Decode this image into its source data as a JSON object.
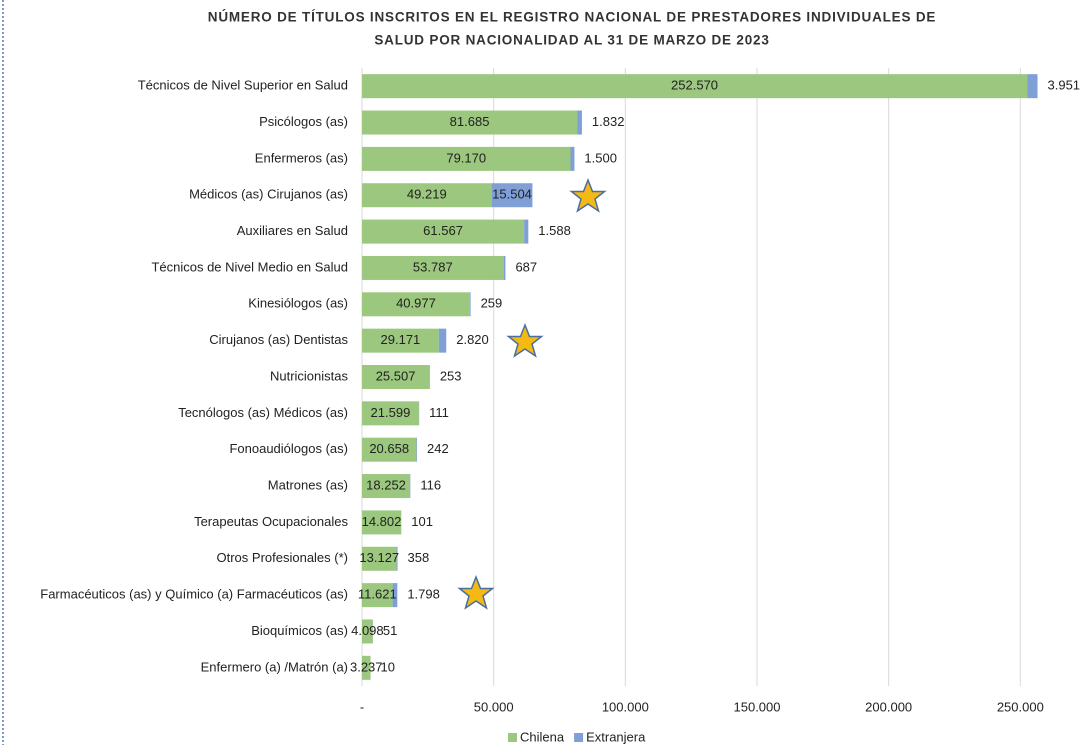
{
  "chart_data": {
    "type": "bar",
    "orientation": "horizontal",
    "stacked": true,
    "title": "NÚMERO DE TÍTULOS INSCRITOS EN EL REGISTRO NACIONAL DE PRESTADORES INDIVIDUALES DE",
    "subtitle": "SALUD POR NACIONALIDAD AL 31 DE MARZO DE 2023",
    "categories": [
      "Técnicos de Nivel Superior en Salud",
      "Psicólogos (as)",
      "Enfermeros (as)",
      "Médicos (as) Cirujanos (as)",
      "Auxiliares en Salud",
      "Técnicos de Nivel Medio en Salud",
      "Kinesiólogos (as)",
      "Cirujanos (as) Dentistas",
      "Nutricionistas",
      "Tecnólogos (as) Médicos (as)",
      "Fonoaudiólogos (as)",
      "Matrones (as)",
      "Terapeutas Ocupacionales",
      "Otros Profesionales (*)",
      "Farmacéuticos (as) y Químico (a) Farmacéuticos (as)",
      "Bioquímicos (as)",
      "Enfermero (a) /Matrón (a)"
    ],
    "series": [
      {
        "name": "Chilena",
        "color": "#9bc77e",
        "values": [
          252570,
          81685,
          79170,
          49219,
          61567,
          53787,
          40977,
          29171,
          25507,
          21599,
          20658,
          18252,
          14802,
          13127,
          11621,
          4098,
          3237
        ],
        "value_labels": [
          "252.570",
          "81.685",
          "79.170",
          "49.219",
          "61.567",
          "53.787",
          "40.977",
          "29.171",
          "25.507",
          "21.599",
          "20.658",
          "18.252",
          "14.802",
          "13.127",
          "11.621",
          "4.098",
          "3.237"
        ]
      },
      {
        "name": "Extranjera",
        "color": "#7f9fd6",
        "values": [
          3951,
          1832,
          1500,
          15504,
          1588,
          687,
          259,
          2820,
          253,
          111,
          242,
          116,
          101,
          358,
          1798,
          51,
          10
        ],
        "value_labels": [
          "3.951",
          "1.832",
          "1.500",
          "15.504",
          "1.588",
          "687",
          "259",
          "2.820",
          "253",
          "111",
          "242",
          "116",
          "101",
          "358",
          "1.798",
          "51",
          "10"
        ]
      }
    ],
    "xlim": [
      0,
      270000
    ],
    "xticks": [
      {
        "value": 0,
        "label": "-"
      },
      {
        "value": 50000,
        "label": "50.000"
      },
      {
        "value": 100000,
        "label": "100.000"
      },
      {
        "value": 150000,
        "label": "150.000"
      },
      {
        "value": 200000,
        "label": "200.000"
      },
      {
        "value": 250000,
        "label": "250.000"
      }
    ],
    "grid": true,
    "legend": "bottom"
  }
}
